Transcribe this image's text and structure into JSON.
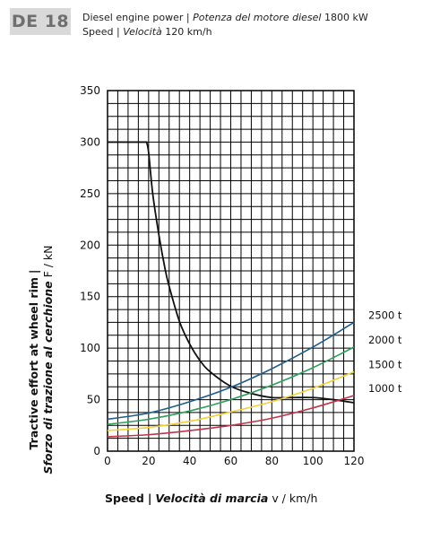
{
  "header": {
    "model": "DE 18",
    "power_label_en": "Diesel engine power",
    "separator": "|",
    "power_label_it": "Potenza del motore diesel",
    "power_value": "1800 kW",
    "speed_label_en": "Speed",
    "speed_label_it": "Velocità",
    "speed_value": "120 km/h"
  },
  "axis_titles": {
    "y_en": "Tractive effort at wheel rim",
    "y_it": "Sforzo di trazione al cerchione",
    "y_unit": "F / kN",
    "x_en": "Speed",
    "x_it": "Velocità di marcia",
    "x_unit": "v / km/h"
  },
  "chart_data": {
    "type": "line",
    "xlim": [
      0,
      120
    ],
    "ylim": [
      0,
      350
    ],
    "xticks": [
      0,
      20,
      40,
      60,
      80,
      100,
      120
    ],
    "yticks": [
      0,
      50,
      100,
      150,
      200,
      250,
      300,
      350
    ],
    "grid": true,
    "grid_x_step": 5,
    "grid_y_step": 12.5,
    "series": [
      {
        "name": "",
        "color": "#111111",
        "x": [
          0,
          18,
          19,
          20,
          22,
          25,
          28,
          30,
          35,
          40,
          45,
          50,
          60,
          70,
          80,
          90,
          100,
          110,
          120
        ],
        "y": [
          300,
          300,
          300,
          290,
          250,
          210,
          177,
          160,
          126,
          104,
          88,
          77,
          63,
          56,
          52,
          52,
          52,
          50,
          47
        ]
      },
      {
        "name": "2500 t",
        "color": "#1f5f8b",
        "x": [
          0,
          20,
          40,
          60,
          80,
          100,
          120
        ],
        "y": [
          31,
          37,
          48,
          62,
          80,
          101,
          125
        ]
      },
      {
        "name": "2000 t",
        "color": "#2e9e5b",
        "x": [
          0,
          20,
          40,
          60,
          80,
          100,
          120
        ],
        "y": [
          26,
          31,
          39,
          50,
          64,
          81,
          101
        ]
      },
      {
        "name": "1500 t",
        "color": "#f2d13a",
        "x": [
          0,
          20,
          40,
          60,
          80,
          100,
          120
        ],
        "y": [
          20,
          23,
          29,
          38,
          48,
          61,
          77
        ]
      },
      {
        "name": "1000 t",
        "color": "#c2344a",
        "x": [
          0,
          20,
          40,
          60,
          80,
          100,
          120
        ],
        "y": [
          14,
          16,
          20,
          25,
          32,
          42,
          54
        ]
      }
    ]
  }
}
